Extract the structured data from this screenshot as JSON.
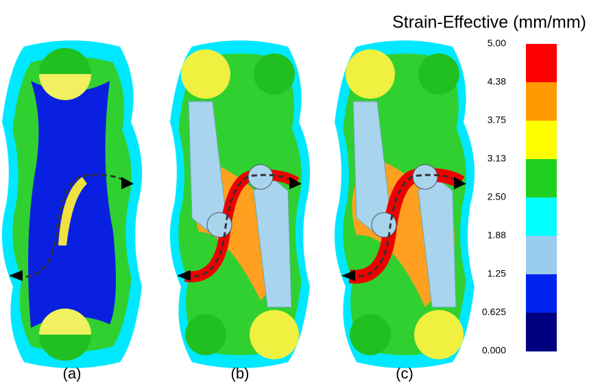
{
  "legend": {
    "title": "Strain-Effective (mm/mm)",
    "ticks": [
      "5.00",
      "4.38",
      "3.75",
      "3.13",
      "2.50",
      "1.88",
      "1.25",
      "0.625",
      "0.000"
    ],
    "colors": [
      "#ff0000",
      "#ff9a00",
      "#ffff00",
      "#20d020",
      "#00ffff",
      "#99ccee",
      "#0022ee",
      "#000080"
    ]
  },
  "panels": [
    {
      "label": "(a)"
    },
    {
      "label": "(b)"
    },
    {
      "label": "(c)"
    }
  ]
}
